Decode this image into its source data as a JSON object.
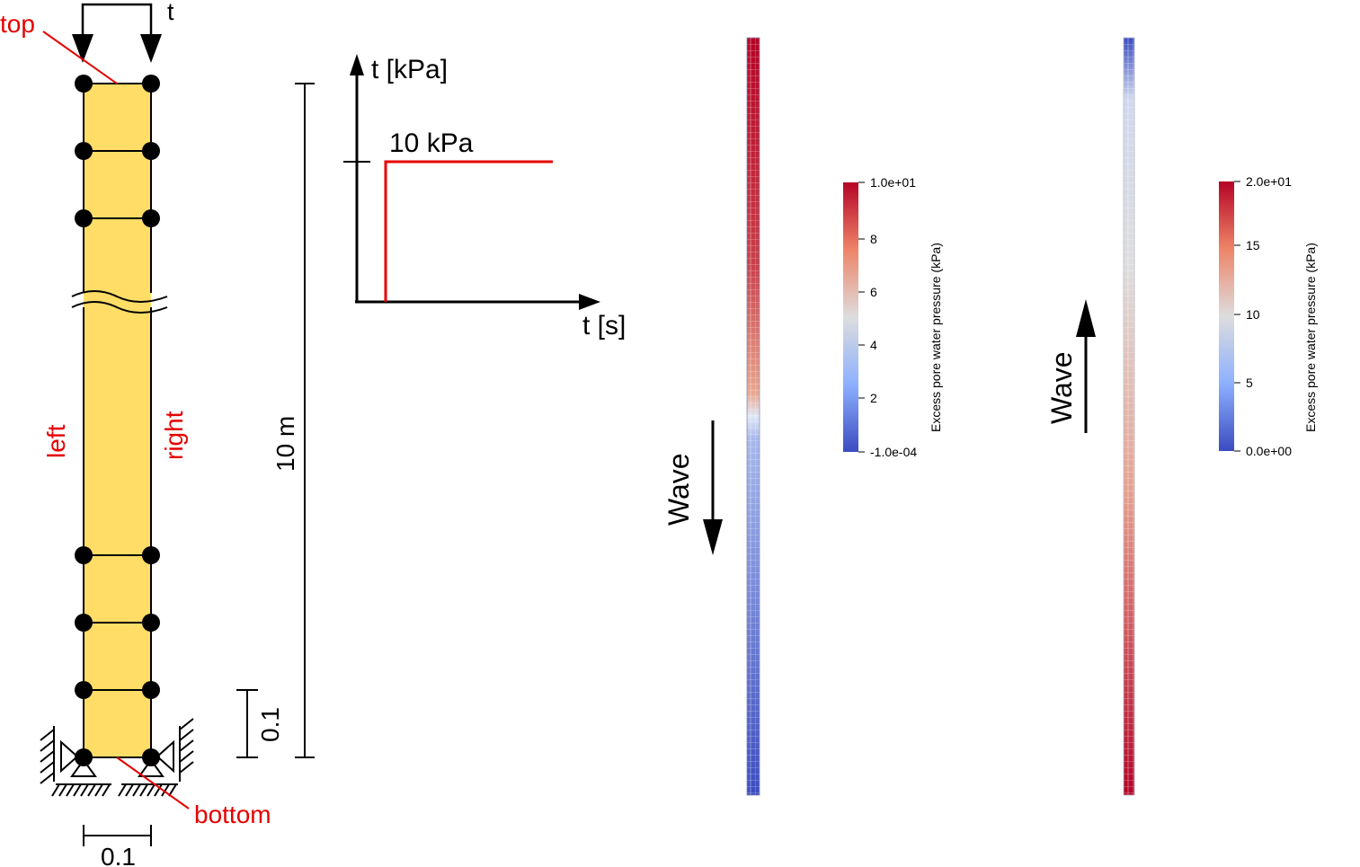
{
  "colors": {
    "soil": "#ffdd66",
    "label_red": "#e60000",
    "cold": "#3b4cc0",
    "neutral": "#dddddd",
    "hot": "#b40426"
  },
  "column": {
    "load_label": "t",
    "top_label": "top",
    "bottom_label": "bottom",
    "left_label": "left",
    "right_label": "right",
    "height_label": "10 m",
    "element_height_label": "0.1",
    "width_label": "0.1"
  },
  "load_graph": {
    "y_label": "t [kPa]",
    "x_label": "t [s]",
    "value_label": "10 kPa"
  },
  "result_down": {
    "arrow_label": "Wave",
    "arrow_direction": "down",
    "colorbar_title": "Excess pore water pressure (kPa)",
    "ticks": [
      "1.0e+01",
      "8",
      "6",
      "4",
      "2",
      "-1.0e-04"
    ],
    "pressure_front_fraction_from_top": 0.5
  },
  "result_up": {
    "arrow_label": "Wave",
    "arrow_direction": "up",
    "colorbar_title": "Excess pore water pressure (kPa)",
    "ticks": [
      "2.0e+01",
      "15",
      "10",
      "5",
      "0.0e+00"
    ]
  }
}
